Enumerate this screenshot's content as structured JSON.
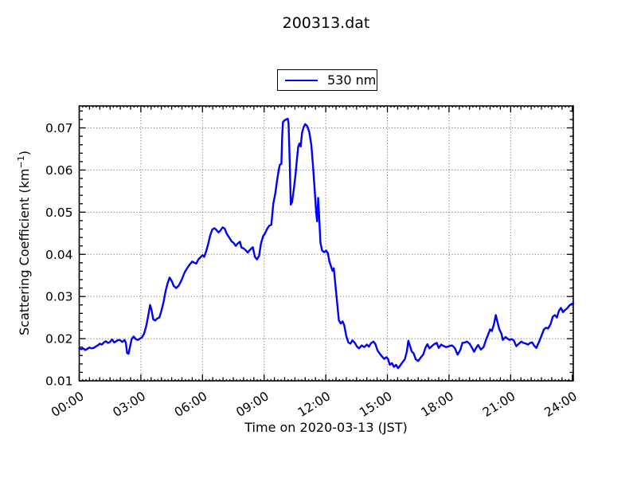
{
  "title": "200313.dat",
  "ylabel_parts": {
    "prefix": "Scattering Coefficient (km",
    "sup": "−1",
    "suffix": ")"
  },
  "colors": {
    "series_blue": "#0000ff",
    "grid_gray": "#606060",
    "axis_black": "#000000",
    "background": "#ffffff"
  },
  "chart_data": {
    "type": "line",
    "title": "200313.dat",
    "xlabel": "Time on 2020-03-13 (JST)",
    "ylabel": "Scattering Coefficient (km⁻¹)",
    "grid": {
      "show": true,
      "style": "dotted",
      "color": "#606060"
    },
    "legend": {
      "position": "above-center",
      "entries": [
        {
          "label": "530 nm",
          "color": "#0000ff"
        }
      ]
    },
    "xlim_hours": [
      0,
      24.05
    ],
    "ylim": [
      0.01,
      0.0752
    ],
    "x_minor_step_hours": 0.5,
    "y_minor_step": 0.002,
    "x_ticks": [
      {
        "t": 0,
        "label": "00:00"
      },
      {
        "t": 3,
        "label": "03:00"
      },
      {
        "t": 6,
        "label": "06:00"
      },
      {
        "t": 9,
        "label": "09:00"
      },
      {
        "t": 12,
        "label": "12:00"
      },
      {
        "t": 15,
        "label": "15:00"
      },
      {
        "t": 18,
        "label": "18:00"
      },
      {
        "t": 21,
        "label": "21:00"
      },
      {
        "t": 24,
        "label": "24:00"
      }
    ],
    "y_ticks": [
      {
        "v": 0.01,
        "label": "0.01"
      },
      {
        "v": 0.02,
        "label": "0.02"
      },
      {
        "v": 0.03,
        "label": "0.03"
      },
      {
        "v": 0.04,
        "label": "0.04"
      },
      {
        "v": 0.05,
        "label": "0.05"
      },
      {
        "v": 0.06,
        "label": "0.06"
      },
      {
        "v": 0.07,
        "label": "0.07"
      }
    ],
    "series": [
      {
        "name": "530 nm",
        "color": "#0000ff",
        "points": [
          [
            0.0,
            0.0177
          ],
          [
            0.1,
            0.0175
          ],
          [
            0.2,
            0.0177
          ],
          [
            0.3,
            0.0173
          ],
          [
            0.4,
            0.0176
          ],
          [
            0.5,
            0.0179
          ],
          [
            0.6,
            0.0177
          ],
          [
            0.7,
            0.0178
          ],
          [
            0.8,
            0.0181
          ],
          [
            0.9,
            0.0184
          ],
          [
            1.0,
            0.0188
          ],
          [
            1.1,
            0.0186
          ],
          [
            1.2,
            0.0191
          ],
          [
            1.3,
            0.0194
          ],
          [
            1.4,
            0.019
          ],
          [
            1.5,
            0.0192
          ],
          [
            1.6,
            0.0198
          ],
          [
            1.7,
            0.0191
          ],
          [
            1.8,
            0.0194
          ],
          [
            1.9,
            0.0197
          ],
          [
            2.0,
            0.0196
          ],
          [
            2.1,
            0.0192
          ],
          [
            2.2,
            0.0197
          ],
          [
            2.27,
            0.019
          ],
          [
            2.33,
            0.0166
          ],
          [
            2.4,
            0.0164
          ],
          [
            2.48,
            0.0183
          ],
          [
            2.55,
            0.0199
          ],
          [
            2.65,
            0.0205
          ],
          [
            2.75,
            0.0199
          ],
          [
            2.85,
            0.0197
          ],
          [
            2.95,
            0.02
          ],
          [
            3.05,
            0.0203
          ],
          [
            3.15,
            0.0211
          ],
          [
            3.25,
            0.0228
          ],
          [
            3.35,
            0.0252
          ],
          [
            3.45,
            0.028
          ],
          [
            3.52,
            0.0268
          ],
          [
            3.6,
            0.0246
          ],
          [
            3.7,
            0.0243
          ],
          [
            3.8,
            0.0248
          ],
          [
            3.9,
            0.025
          ],
          [
            4.0,
            0.0266
          ],
          [
            4.1,
            0.0286
          ],
          [
            4.2,
            0.0312
          ],
          [
            4.3,
            0.0331
          ],
          [
            4.4,
            0.0345
          ],
          [
            4.5,
            0.0337
          ],
          [
            4.6,
            0.0325
          ],
          [
            4.72,
            0.032
          ],
          [
            4.85,
            0.0326
          ],
          [
            5.0,
            0.0341
          ],
          [
            5.12,
            0.0356
          ],
          [
            5.25,
            0.0367
          ],
          [
            5.38,
            0.0376
          ],
          [
            5.5,
            0.0383
          ],
          [
            5.6,
            0.038
          ],
          [
            5.7,
            0.0378
          ],
          [
            5.8,
            0.0388
          ],
          [
            5.9,
            0.0393
          ],
          [
            6.0,
            0.0398
          ],
          [
            6.08,
            0.0394
          ],
          [
            6.18,
            0.0407
          ],
          [
            6.28,
            0.0425
          ],
          [
            6.38,
            0.0446
          ],
          [
            6.48,
            0.0459
          ],
          [
            6.58,
            0.0462
          ],
          [
            6.68,
            0.0458
          ],
          [
            6.78,
            0.0452
          ],
          [
            6.88,
            0.0457
          ],
          [
            6.98,
            0.0464
          ],
          [
            7.08,
            0.0461
          ],
          [
            7.18,
            0.0449
          ],
          [
            7.3,
            0.044
          ],
          [
            7.42,
            0.0431
          ],
          [
            7.52,
            0.0427
          ],
          [
            7.62,
            0.042
          ],
          [
            7.72,
            0.0426
          ],
          [
            7.82,
            0.043
          ],
          [
            7.9,
            0.0416
          ],
          [
            8.0,
            0.0414
          ],
          [
            8.1,
            0.041
          ],
          [
            8.2,
            0.0404
          ],
          [
            8.3,
            0.041
          ],
          [
            8.45,
            0.0417
          ],
          [
            8.55,
            0.0394
          ],
          [
            8.65,
            0.0388
          ],
          [
            8.75,
            0.0396
          ],
          [
            8.85,
            0.0426
          ],
          [
            8.95,
            0.0443
          ],
          [
            9.05,
            0.045
          ],
          [
            9.15,
            0.0461
          ],
          [
            9.25,
            0.0468
          ],
          [
            9.35,
            0.047
          ],
          [
            9.45,
            0.0521
          ],
          [
            9.55,
            0.0546
          ],
          [
            9.62,
            0.0572
          ],
          [
            9.7,
            0.0597
          ],
          [
            9.76,
            0.0612
          ],
          [
            9.84,
            0.0615
          ],
          [
            9.88,
            0.068
          ],
          [
            9.92,
            0.0714
          ],
          [
            10.0,
            0.0718
          ],
          [
            10.08,
            0.072
          ],
          [
            10.15,
            0.0722
          ],
          [
            10.19,
            0.071
          ],
          [
            10.24,
            0.063
          ],
          [
            10.3,
            0.0518
          ],
          [
            10.36,
            0.0524
          ],
          [
            10.45,
            0.0556
          ],
          [
            10.53,
            0.059
          ],
          [
            10.6,
            0.0627
          ],
          [
            10.66,
            0.0655
          ],
          [
            10.72,
            0.0663
          ],
          [
            10.78,
            0.0656
          ],
          [
            10.85,
            0.0689
          ],
          [
            10.92,
            0.0701
          ],
          [
            11.0,
            0.0709
          ],
          [
            11.1,
            0.0704
          ],
          [
            11.2,
            0.0689
          ],
          [
            11.3,
            0.0659
          ],
          [
            11.38,
            0.061
          ],
          [
            11.46,
            0.0553
          ],
          [
            11.53,
            0.05
          ],
          [
            11.58,
            0.0478
          ],
          [
            11.63,
            0.0534
          ],
          [
            11.68,
            0.049
          ],
          [
            11.74,
            0.0428
          ],
          [
            11.82,
            0.0409
          ],
          [
            11.92,
            0.0405
          ],
          [
            12.02,
            0.0409
          ],
          [
            12.1,
            0.0403
          ],
          [
            12.18,
            0.0383
          ],
          [
            12.26,
            0.0371
          ],
          [
            12.33,
            0.0361
          ],
          [
            12.39,
            0.0367
          ],
          [
            12.47,
            0.0328
          ],
          [
            12.56,
            0.0281
          ],
          [
            12.64,
            0.0243
          ],
          [
            12.73,
            0.0236
          ],
          [
            12.82,
            0.0241
          ],
          [
            12.9,
            0.0232
          ],
          [
            13.0,
            0.0206
          ],
          [
            13.1,
            0.0191
          ],
          [
            13.2,
            0.0188
          ],
          [
            13.3,
            0.0196
          ],
          [
            13.42,
            0.019
          ],
          [
            13.52,
            0.0181
          ],
          [
            13.62,
            0.0177
          ],
          [
            13.75,
            0.0184
          ],
          [
            13.88,
            0.018
          ],
          [
            14.0,
            0.0186
          ],
          [
            14.1,
            0.0181
          ],
          [
            14.2,
            0.0189
          ],
          [
            14.32,
            0.0193
          ],
          [
            14.42,
            0.0187
          ],
          [
            14.52,
            0.0172
          ],
          [
            14.65,
            0.0163
          ],
          [
            14.75,
            0.0157
          ],
          [
            14.85,
            0.0152
          ],
          [
            14.95,
            0.0156
          ],
          [
            15.03,
            0.0152
          ],
          [
            15.12,
            0.0138
          ],
          [
            15.22,
            0.0142
          ],
          [
            15.32,
            0.0133
          ],
          [
            15.42,
            0.0138
          ],
          [
            15.52,
            0.013
          ],
          [
            15.62,
            0.0136
          ],
          [
            15.72,
            0.0143
          ],
          [
            15.85,
            0.0151
          ],
          [
            15.95,
            0.017
          ],
          [
            16.02,
            0.0195
          ],
          [
            16.1,
            0.0183
          ],
          [
            16.18,
            0.017
          ],
          [
            16.28,
            0.0165
          ],
          [
            16.38,
            0.0151
          ],
          [
            16.5,
            0.0147
          ],
          [
            16.62,
            0.0155
          ],
          [
            16.75,
            0.0163
          ],
          [
            16.85,
            0.0178
          ],
          [
            16.95,
            0.0187
          ],
          [
            17.05,
            0.0177
          ],
          [
            17.18,
            0.0183
          ],
          [
            17.28,
            0.0187
          ],
          [
            17.4,
            0.019
          ],
          [
            17.5,
            0.0178
          ],
          [
            17.62,
            0.0186
          ],
          [
            17.72,
            0.0183
          ],
          [
            17.85,
            0.018
          ],
          [
            17.95,
            0.0181
          ],
          [
            18.05,
            0.0183
          ],
          [
            18.15,
            0.0184
          ],
          [
            18.28,
            0.0178
          ],
          [
            18.42,
            0.0162
          ],
          [
            18.55,
            0.0173
          ],
          [
            18.65,
            0.019
          ],
          [
            18.78,
            0.0191
          ],
          [
            18.88,
            0.0193
          ],
          [
            19.0,
            0.0188
          ],
          [
            19.1,
            0.018
          ],
          [
            19.22,
            0.0169
          ],
          [
            19.32,
            0.0178
          ],
          [
            19.42,
            0.0185
          ],
          [
            19.55,
            0.0174
          ],
          [
            19.68,
            0.018
          ],
          [
            19.8,
            0.0197
          ],
          [
            19.9,
            0.0209
          ],
          [
            20.0,
            0.0222
          ],
          [
            20.08,
            0.0218
          ],
          [
            20.18,
            0.0233
          ],
          [
            20.28,
            0.0256
          ],
          [
            20.36,
            0.0239
          ],
          [
            20.45,
            0.0222
          ],
          [
            20.55,
            0.0212
          ],
          [
            20.62,
            0.0197
          ],
          [
            20.75,
            0.0204
          ],
          [
            20.85,
            0.02
          ],
          [
            20.95,
            0.0197
          ],
          [
            21.05,
            0.0199
          ],
          [
            21.15,
            0.0196
          ],
          [
            21.28,
            0.0182
          ],
          [
            21.4,
            0.0188
          ],
          [
            21.52,
            0.0193
          ],
          [
            21.62,
            0.019
          ],
          [
            21.75,
            0.0188
          ],
          [
            21.85,
            0.0186
          ],
          [
            21.95,
            0.019
          ],
          [
            22.05,
            0.0191
          ],
          [
            22.15,
            0.0183
          ],
          [
            22.25,
            0.0178
          ],
          [
            22.38,
            0.0192
          ],
          [
            22.5,
            0.0207
          ],
          [
            22.62,
            0.0222
          ],
          [
            22.72,
            0.0226
          ],
          [
            22.82,
            0.0224
          ],
          [
            22.95,
            0.0235
          ],
          [
            23.05,
            0.0252
          ],
          [
            23.15,
            0.0256
          ],
          [
            23.25,
            0.025
          ],
          [
            23.35,
            0.0266
          ],
          [
            23.45,
            0.0273
          ],
          [
            23.55,
            0.0263
          ],
          [
            23.65,
            0.0268
          ],
          [
            23.75,
            0.0272
          ],
          [
            23.85,
            0.0278
          ],
          [
            23.95,
            0.0282
          ],
          [
            24.05,
            0.0284
          ]
        ]
      }
    ]
  }
}
